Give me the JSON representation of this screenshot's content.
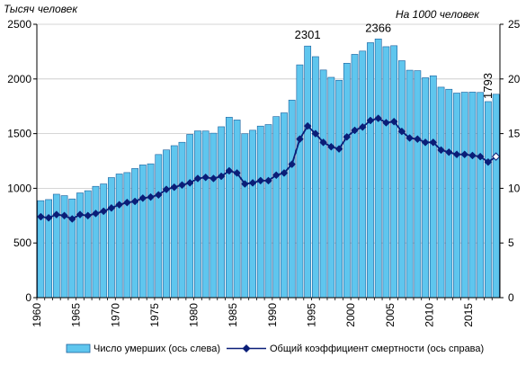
{
  "chart_data": {
    "type": "bar",
    "left_axis_title": "Тысяч человек",
    "right_axis_title": "На 1000 человек",
    "y_left": {
      "min": 0,
      "max": 2500,
      "ticks": [
        0,
        500,
        1000,
        1500,
        2000,
        2500
      ]
    },
    "y_right": {
      "min": 0,
      "max": 25,
      "ticks": [
        0,
        5,
        10,
        15,
        20,
        25
      ]
    },
    "x_tick_labels": [
      "1960",
      "1965",
      "1970",
      "1975",
      "1980",
      "1985",
      "1990",
      "1995",
      "2000",
      "2005",
      "2010",
      "2015"
    ],
    "years": [
      1960,
      1961,
      1962,
      1963,
      1964,
      1965,
      1966,
      1967,
      1968,
      1969,
      1970,
      1971,
      1972,
      1973,
      1974,
      1975,
      1976,
      1977,
      1978,
      1979,
      1980,
      1981,
      1982,
      1983,
      1984,
      1985,
      1986,
      1987,
      1988,
      1989,
      1990,
      1991,
      1992,
      1993,
      1994,
      1995,
      1996,
      1997,
      1998,
      1999,
      2000,
      2001,
      2002,
      2003,
      2004,
      2005,
      2006,
      2007,
      2008,
      2009,
      2010,
      2011,
      2012,
      2013,
      2014,
      2015,
      2016,
      2017,
      2018
    ],
    "series": [
      {
        "name": "Число умерших (ось слева)",
        "kind": "bar",
        "axis": "left",
        "color": "#5fc6ee",
        "values": [
          887,
          897,
          946,
          933,
          903,
          958,
          978,
          1018,
          1040,
          1098,
          1131,
          1144,
          1181,
          1214,
          1224,
          1309,
          1351,
          1390,
          1421,
          1493,
          1525,
          1524,
          1504,
          1563,
          1650,
          1625,
          1499,
          1531,
          1569,
          1583,
          1656,
          1690,
          1807,
          2129,
          2301,
          2204,
          2082,
          2015,
          1988,
          2144,
          2225,
          2255,
          2332,
          2366,
          2295,
          2304,
          2167,
          2080,
          2076,
          2011,
          2029,
          1925,
          1906,
          1871,
          1879,
          1880,
          1877,
          1793,
          1860
        ]
      },
      {
        "name": "Общий коэффициент смертности (ось справа)",
        "kind": "line",
        "axis": "right",
        "color": "#0a1e78",
        "values": [
          7.4,
          7.3,
          7.6,
          7.5,
          7.2,
          7.6,
          7.5,
          7.7,
          7.9,
          8.2,
          8.5,
          8.7,
          8.8,
          9.1,
          9.2,
          9.4,
          9.9,
          10.1,
          10.3,
          10.5,
          10.9,
          11.0,
          10.9,
          11.1,
          11.6,
          11.4,
          10.4,
          10.5,
          10.7,
          10.7,
          11.2,
          11.4,
          12.2,
          14.5,
          15.7,
          15.0,
          14.2,
          13.8,
          13.6,
          14.7,
          15.3,
          15.6,
          16.2,
          16.4,
          16.0,
          16.1,
          15.2,
          14.6,
          14.5,
          14.2,
          14.2,
          13.5,
          13.3,
          13.1,
          13.1,
          13.0,
          12.9,
          12.4,
          12.9
        ]
      }
    ],
    "annotations": [
      {
        "year": 1994,
        "text": "2301"
      },
      {
        "year": 2003,
        "text": "2366"
      },
      {
        "year": 2017,
        "text": "1793"
      }
    ],
    "grid": true,
    "legend_position": "bottom"
  }
}
